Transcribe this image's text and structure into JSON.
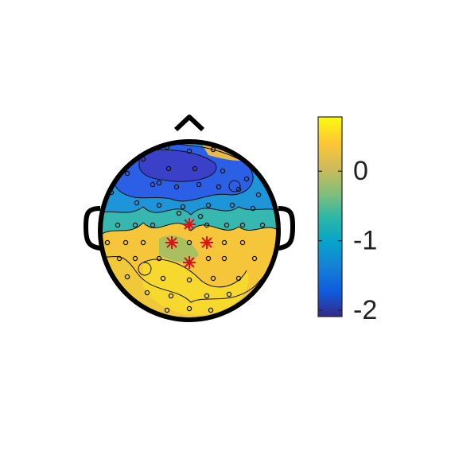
{
  "chart_data": {
    "type": "topoplot",
    "clim": [
      -2.09,
      0.78
    ],
    "cticks": [
      0,
      -1,
      -2
    ],
    "colormap": [
      "#352a87",
      "#0f5cdd",
      "#1481d6",
      "#06a4ca",
      "#2eb7a4",
      "#87bf77",
      "#d1bb59",
      "#fec832",
      "#f9fb0e"
    ]
  }
}
